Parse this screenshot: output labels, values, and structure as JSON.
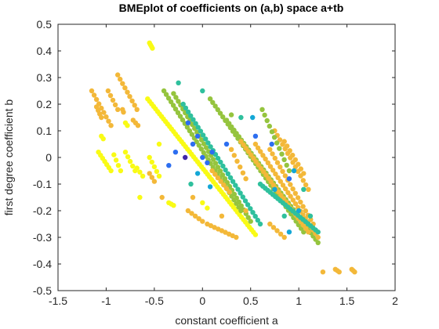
{
  "chart_data": {
    "type": "scatter",
    "title": "BMEplot of coefficients on (a,b) space a+tb",
    "xlabel": "constant coefficient a",
    "ylabel": "first degree coefficient b",
    "xlim": [
      -1.5,
      2
    ],
    "ylim": [
      -0.5,
      0.5
    ],
    "xticks": [
      -1.5,
      -1,
      -0.5,
      0,
      0.5,
      1,
      1.5,
      2
    ],
    "xtick_labels": [
      "-1.5",
      "-1",
      "-0.5",
      "0",
      "0.5",
      "1",
      "1.5",
      "2"
    ],
    "yticks": [
      -0.5,
      -0.4,
      -0.3,
      -0.2,
      -0.1,
      0,
      0.1,
      0.2,
      0.3,
      0.4,
      0.5
    ],
    "ytick_labels": [
      "-0.5",
      "-0.4",
      "-0.3",
      "-0.2",
      "-0.1",
      "0",
      "0.1",
      "0.2",
      "0.3",
      "0.4",
      "0.5"
    ],
    "grid": false,
    "box": true,
    "colormap": [
      "#3e26a8",
      "#2d6ef0",
      "#14a7d6",
      "#2fc09d",
      "#95c43e",
      "#f3b839",
      "#f9fb15"
    ],
    "segments": [
      {
        "from": [
          -0.57,
          0.22
        ],
        "to": [
          0.55,
          -0.29
        ],
        "color": 6,
        "n": 55
      },
      {
        "from": [
          -0.55,
          0.43
        ],
        "to": [
          -0.52,
          0.41
        ],
        "color": 6,
        "n": 4
      },
      {
        "from": [
          -1.15,
          0.25
        ],
        "to": [
          -0.95,
          0.12
        ],
        "color": 5,
        "n": 9
      },
      {
        "from": [
          -1.1,
          0.19
        ],
        "to": [
          -1.05,
          0.15
        ],
        "color": 5,
        "n": 4
      },
      {
        "from": [
          -1.05,
          0.08
        ],
        "to": [
          -1.03,
          0.07
        ],
        "color": 6,
        "n": 2
      },
      {
        "from": [
          -0.88,
          0.31
        ],
        "to": [
          -0.68,
          0.18
        ],
        "color": 5,
        "n": 9
      },
      {
        "from": [
          -0.98,
          0.25
        ],
        "to": [
          -0.88,
          0.18
        ],
        "color": 5,
        "n": 5
      },
      {
        "from": [
          -0.83,
          0.18
        ],
        "to": [
          -0.82,
          0.17
        ],
        "color": 5,
        "n": 2
      },
      {
        "from": [
          -0.8,
          0.13
        ],
        "to": [
          -0.78,
          0.12
        ],
        "color": 6,
        "n": 2
      },
      {
        "from": [
          -0.72,
          0.14
        ],
        "to": [
          -0.67,
          0.12
        ],
        "color": 5,
        "n": 3
      },
      {
        "from": [
          -1.08,
          0.02
        ],
        "to": [
          -0.95,
          -0.05
        ],
        "color": 6,
        "n": 7
      },
      {
        "from": [
          -0.92,
          0.01
        ],
        "to": [
          -0.85,
          -0.05
        ],
        "color": 6,
        "n": 4
      },
      {
        "from": [
          -0.8,
          0.02
        ],
        "to": [
          -0.7,
          -0.05
        ],
        "color": 6,
        "n": 5
      },
      {
        "from": [
          -0.68,
          -0.04
        ],
        "to": [
          -0.62,
          -0.07
        ],
        "color": 6,
        "n": 3
      },
      {
        "from": [
          -0.55,
          -0.06
        ],
        "to": [
          -0.5,
          -0.09
        ],
        "color": 5,
        "n": 3
      },
      {
        "from": [
          -0.55,
          0.0
        ],
        "to": [
          -0.45,
          -0.07
        ],
        "color": 6,
        "n": 5
      },
      {
        "from": [
          -0.35,
          -0.17
        ],
        "to": [
          -0.3,
          -0.18
        ],
        "color": 6,
        "n": 3
      },
      {
        "from": [
          -0.4,
          0.25
        ],
        "to": [
          0.4,
          -0.2
        ],
        "color": 4,
        "n": 34
      },
      {
        "from": [
          -0.3,
          0.24
        ],
        "to": [
          0.5,
          -0.24
        ],
        "color": 4,
        "n": 34
      },
      {
        "from": [
          -0.2,
          0.2
        ],
        "to": [
          0.6,
          -0.25
        ],
        "color": 3,
        "n": 32
      },
      {
        "from": [
          0.08,
          0.22
        ],
        "to": [
          1.05,
          -0.28
        ],
        "color": 4,
        "n": 38
      },
      {
        "from": [
          0.25,
          0.14
        ],
        "to": [
          1.2,
          -0.32
        ],
        "color": 4,
        "n": 38
      },
      {
        "from": [
          0.4,
          0.06
        ],
        "to": [
          1.1,
          -0.28
        ],
        "color": 5,
        "n": 28
      },
      {
        "from": [
          0.55,
          0.05
        ],
        "to": [
          1.2,
          -0.3
        ],
        "color": 5,
        "n": 26
      },
      {
        "from": [
          0.7,
          0.03
        ],
        "to": [
          1.15,
          -0.25
        ],
        "color": 5,
        "n": 18
      },
      {
        "from": [
          0.6,
          -0.1
        ],
        "to": [
          1.2,
          -0.28
        ],
        "color": 3,
        "n": 24
      },
      {
        "from": [
          0.75,
          0.1
        ],
        "to": [
          1.1,
          -0.12
        ],
        "color": 5,
        "n": 14
      },
      {
        "from": [
          0.85,
          0.06
        ],
        "to": [
          1.05,
          -0.06
        ],
        "color": 5,
        "n": 8
      },
      {
        "from": [
          0.62,
          0.18
        ],
        "to": [
          0.9,
          -0.05
        ],
        "color": 4,
        "n": 12
      },
      {
        "from": [
          0.3,
          0.03
        ],
        "to": [
          0.45,
          -0.08
        ],
        "color": 5,
        "n": 6
      },
      {
        "from": [
          0.1,
          -0.05
        ],
        "to": [
          0.28,
          -0.13
        ],
        "color": 5,
        "n": 7
      },
      {
        "from": [
          -0.15,
          -0.2
        ],
        "to": [
          0.0,
          -0.24
        ],
        "color": 5,
        "n": 5
      },
      {
        "from": [
          0.05,
          -0.25
        ],
        "to": [
          0.35,
          -0.3
        ],
        "color": 5,
        "n": 9
      },
      {
        "from": [
          0.0,
          -0.17
        ],
        "to": [
          0.05,
          -0.19
        ],
        "color": 6,
        "n": 2
      },
      {
        "from": [
          0.7,
          -0.25
        ],
        "to": [
          0.85,
          -0.3
        ],
        "color": 5,
        "n": 5
      },
      {
        "from": [
          1.38,
          -0.42
        ],
        "to": [
          1.42,
          -0.43
        ],
        "color": 5,
        "n": 3
      },
      {
        "from": [
          1.55,
          -0.42
        ],
        "to": [
          1.58,
          -0.43
        ],
        "color": 5,
        "n": 3
      }
    ],
    "points": [
      {
        "x": -0.1,
        "y": 0.05,
        "color": 1
      },
      {
        "x": -0.05,
        "y": 0.08,
        "color": 1
      },
      {
        "x": -0.15,
        "y": 0.13,
        "color": 1
      },
      {
        "x": 0.05,
        "y": -0.02,
        "color": 1
      },
      {
        "x": 0.0,
        "y": 0.0,
        "color": 1
      },
      {
        "x": -0.18,
        "y": 0.0,
        "color": 0
      },
      {
        "x": -0.35,
        "y": -0.03,
        "color": 1
      },
      {
        "x": -0.28,
        "y": 0.02,
        "color": 1
      },
      {
        "x": -0.05,
        "y": -0.06,
        "color": 2
      },
      {
        "x": 0.1,
        "y": 0.02,
        "color": 1
      },
      {
        "x": 0.25,
        "y": 0.05,
        "color": 1
      },
      {
        "x": 0.08,
        "y": -0.11,
        "color": 2
      },
      {
        "x": -0.12,
        "y": -0.1,
        "color": 3
      },
      {
        "x": 0.4,
        "y": 0.15,
        "color": 3
      },
      {
        "x": 0.52,
        "y": 0.15,
        "color": 2
      },
      {
        "x": 0.55,
        "y": 0.08,
        "color": 1
      },
      {
        "x": 0.3,
        "y": 0.16,
        "color": 4
      },
      {
        "x": -0.25,
        "y": 0.28,
        "color": 3
      },
      {
        "x": 0.0,
        "y": 0.25,
        "color": 3
      },
      {
        "x": 0.72,
        "y": 0.05,
        "color": 1
      },
      {
        "x": 0.9,
        "y": -0.08,
        "color": 1
      },
      {
        "x": 0.75,
        "y": -0.12,
        "color": 2
      },
      {
        "x": 1.0,
        "y": -0.2,
        "color": 2
      },
      {
        "x": 1.05,
        "y": -0.12,
        "color": 3
      },
      {
        "x": 0.95,
        "y": -0.05,
        "color": 2
      },
      {
        "x": 0.9,
        "y": -0.28,
        "color": 2
      },
      {
        "x": 1.12,
        "y": -0.22,
        "color": 3
      },
      {
        "x": 0.85,
        "y": -0.22,
        "color": 3
      },
      {
        "x": 1.25,
        "y": -0.43,
        "color": 5
      },
      {
        "x": -0.45,
        "y": 0.05,
        "color": 6
      },
      {
        "x": -0.65,
        "y": -0.15,
        "color": 6
      },
      {
        "x": -0.42,
        "y": -0.15,
        "color": 5
      },
      {
        "x": -0.1,
        "y": -0.15,
        "color": 5
      },
      {
        "x": 0.2,
        "y": -0.22,
        "color": 5
      },
      {
        "x": 0.45,
        "y": -0.2,
        "color": 5
      }
    ]
  }
}
